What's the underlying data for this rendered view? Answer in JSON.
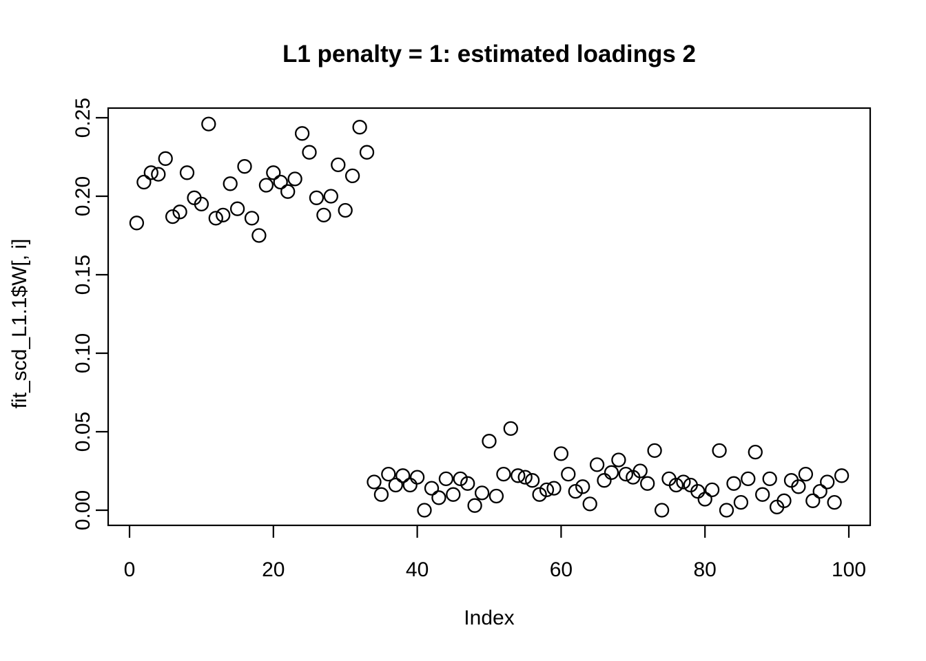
{
  "title": "L1 penalty = 1: estimated loadings 2",
  "colors": {
    "background": "#ffffff",
    "axis": "#000000",
    "point_stroke": "#000000"
  },
  "chart_data": {
    "type": "scatter",
    "title": "L1 penalty = 1: estimated loadings 2",
    "xlabel": "Index",
    "ylabel": "fit_scd_L1.1$W[, i]",
    "xlim": [
      0,
      100
    ],
    "ylim": [
      0.0,
      0.25
    ],
    "x_ticks": [
      0,
      20,
      40,
      60,
      80,
      100
    ],
    "y_ticks": [
      "0.00",
      "0.05",
      "0.10",
      "0.15",
      "0.20",
      "0.25"
    ],
    "grid": false,
    "legend": false,
    "marker": "open-circle",
    "x": [
      1,
      2,
      3,
      4,
      5,
      6,
      7,
      8,
      9,
      10,
      11,
      12,
      13,
      14,
      15,
      16,
      17,
      18,
      19,
      20,
      21,
      22,
      23,
      24,
      25,
      26,
      27,
      28,
      29,
      30,
      31,
      32,
      33,
      34,
      35,
      36,
      37,
      38,
      39,
      40,
      41,
      42,
      43,
      44,
      45,
      46,
      47,
      48,
      49,
      50,
      51,
      52,
      53,
      54,
      55,
      56,
      57,
      58,
      59,
      60,
      61,
      62,
      63,
      64,
      65,
      66,
      67,
      68,
      69,
      70,
      71,
      72,
      73,
      74,
      75,
      76,
      77,
      78,
      79,
      80,
      81,
      82,
      83,
      84,
      85,
      86,
      87,
      88,
      89,
      90,
      91,
      92,
      93,
      94,
      95,
      96,
      97,
      98,
      99
    ],
    "y": [
      0.183,
      0.209,
      0.215,
      0.214,
      0.224,
      0.187,
      0.19,
      0.215,
      0.199,
      0.195,
      0.246,
      0.186,
      0.188,
      0.208,
      0.192,
      0.219,
      0.186,
      0.175,
      0.207,
      0.215,
      0.209,
      0.203,
      0.211,
      0.24,
      0.228,
      0.199,
      0.188,
      0.2,
      0.22,
      0.191,
      0.213,
      0.244,
      0.228,
      0.018,
      0.01,
      0.023,
      0.016,
      0.022,
      0.016,
      0.021,
      0.0,
      0.014,
      0.008,
      0.02,
      0.01,
      0.02,
      0.017,
      0.003,
      0.011,
      0.044,
      0.009,
      0.023,
      0.052,
      0.022,
      0.021,
      0.019,
      0.01,
      0.013,
      0.014,
      0.036,
      0.023,
      0.012,
      0.015,
      0.004,
      0.029,
      0.019,
      0.024,
      0.032,
      0.023,
      0.021,
      0.025,
      0.017,
      0.038,
      0.0,
      0.02,
      0.016,
      0.018,
      0.016,
      0.012,
      0.007,
      0.013,
      0.038,
      0.0,
      0.017,
      0.005,
      0.02,
      0.037,
      0.01,
      0.02,
      0.002,
      0.006,
      0.019,
      0.015,
      0.023,
      0.006,
      0.012,
      0.018,
      0.005,
      0.022
    ]
  }
}
